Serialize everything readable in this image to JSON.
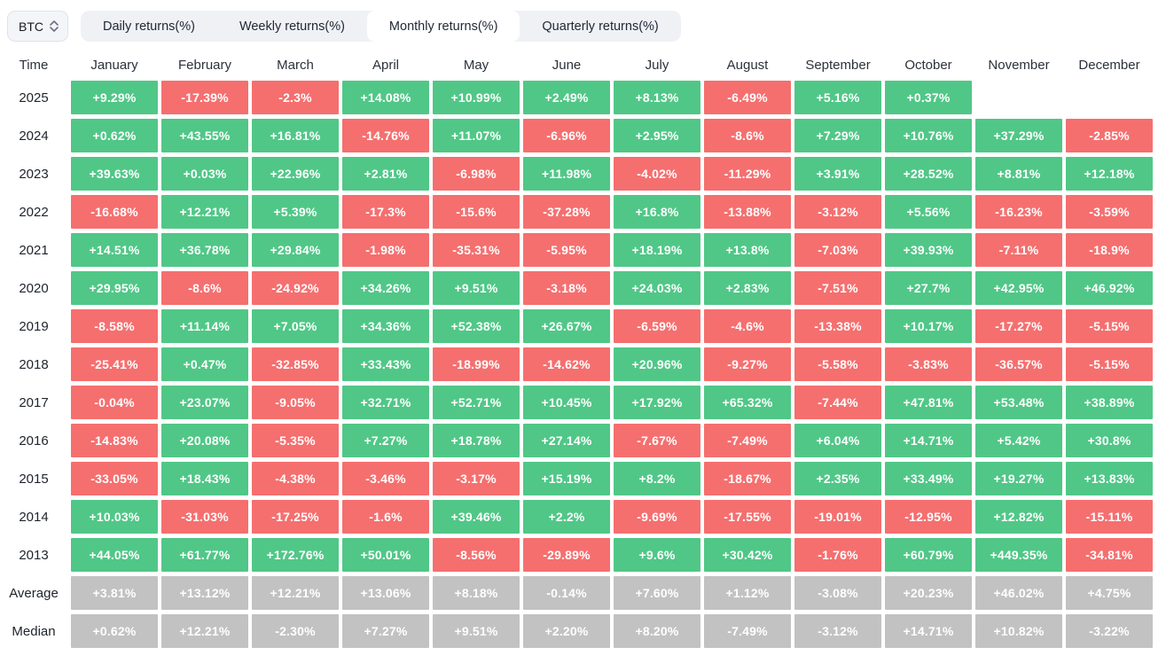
{
  "controls": {
    "coin": "BTC",
    "coin_selector_icon": "updown-chevron-icon",
    "tabs": [
      "Daily returns(%)",
      "Weekly returns(%)",
      "Monthly returns(%)",
      "Quarterly returns(%)"
    ],
    "active_tab": "Monthly returns(%)"
  },
  "colors": {
    "positive": "#50c787",
    "negative": "#f56f6f",
    "summary": "#c2c2c2",
    "tab_bar_bg": "#eff1f5",
    "active_tab_bg": "#ffffff",
    "cell_text": "#ffffff",
    "header_text": "#2b313b"
  },
  "chart_data": {
    "type": "heatmap",
    "title": "Monthly returns(%)",
    "columns": [
      "Time",
      "January",
      "February",
      "March",
      "April",
      "May",
      "June",
      "July",
      "August",
      "September",
      "October",
      "November",
      "December"
    ],
    "rows": [
      {
        "label": "2025",
        "summary": false,
        "values": [
          "+9.29%",
          "-17.39%",
          "-2.3%",
          "+14.08%",
          "+10.99%",
          "+2.49%",
          "+8.13%",
          "-6.49%",
          "+5.16%",
          "+0.37%",
          "",
          ""
        ]
      },
      {
        "label": "2024",
        "summary": false,
        "values": [
          "+0.62%",
          "+43.55%",
          "+16.81%",
          "-14.76%",
          "+11.07%",
          "-6.96%",
          "+2.95%",
          "-8.6%",
          "+7.29%",
          "+10.76%",
          "+37.29%",
          "-2.85%"
        ]
      },
      {
        "label": "2023",
        "summary": false,
        "values": [
          "+39.63%",
          "+0.03%",
          "+22.96%",
          "+2.81%",
          "-6.98%",
          "+11.98%",
          "-4.02%",
          "-11.29%",
          "+3.91%",
          "+28.52%",
          "+8.81%",
          "+12.18%"
        ]
      },
      {
        "label": "2022",
        "summary": false,
        "values": [
          "-16.68%",
          "+12.21%",
          "+5.39%",
          "-17.3%",
          "-15.6%",
          "-37.28%",
          "+16.8%",
          "-13.88%",
          "-3.12%",
          "+5.56%",
          "-16.23%",
          "-3.59%"
        ]
      },
      {
        "label": "2021",
        "summary": false,
        "values": [
          "+14.51%",
          "+36.78%",
          "+29.84%",
          "-1.98%",
          "-35.31%",
          "-5.95%",
          "+18.19%",
          "+13.8%",
          "-7.03%",
          "+39.93%",
          "-7.11%",
          "-18.9%"
        ]
      },
      {
        "label": "2020",
        "summary": false,
        "values": [
          "+29.95%",
          "-8.6%",
          "-24.92%",
          "+34.26%",
          "+9.51%",
          "-3.18%",
          "+24.03%",
          "+2.83%",
          "-7.51%",
          "+27.7%",
          "+42.95%",
          "+46.92%"
        ]
      },
      {
        "label": "2019",
        "summary": false,
        "values": [
          "-8.58%",
          "+11.14%",
          "+7.05%",
          "+34.36%",
          "+52.38%",
          "+26.67%",
          "-6.59%",
          "-4.6%",
          "-13.38%",
          "+10.17%",
          "-17.27%",
          "-5.15%"
        ]
      },
      {
        "label": "2018",
        "summary": false,
        "values": [
          "-25.41%",
          "+0.47%",
          "-32.85%",
          "+33.43%",
          "-18.99%",
          "-14.62%",
          "+20.96%",
          "-9.27%",
          "-5.58%",
          "-3.83%",
          "-36.57%",
          "-5.15%"
        ]
      },
      {
        "label": "2017",
        "summary": false,
        "values": [
          "-0.04%",
          "+23.07%",
          "-9.05%",
          "+32.71%",
          "+52.71%",
          "+10.45%",
          "+17.92%",
          "+65.32%",
          "-7.44%",
          "+47.81%",
          "+53.48%",
          "+38.89%"
        ]
      },
      {
        "label": "2016",
        "summary": false,
        "values": [
          "-14.83%",
          "+20.08%",
          "-5.35%",
          "+7.27%",
          "+18.78%",
          "+27.14%",
          "-7.67%",
          "-7.49%",
          "+6.04%",
          "+14.71%",
          "+5.42%",
          "+30.8%"
        ]
      },
      {
        "label": "2015",
        "summary": false,
        "values": [
          "-33.05%",
          "+18.43%",
          "-4.38%",
          "-3.46%",
          "-3.17%",
          "+15.19%",
          "+8.2%",
          "-18.67%",
          "+2.35%",
          "+33.49%",
          "+19.27%",
          "+13.83%"
        ]
      },
      {
        "label": "2014",
        "summary": false,
        "values": [
          "+10.03%",
          "-31.03%",
          "-17.25%",
          "-1.6%",
          "+39.46%",
          "+2.2%",
          "-9.69%",
          "-17.55%",
          "-19.01%",
          "-12.95%",
          "+12.82%",
          "-15.11%"
        ]
      },
      {
        "label": "2013",
        "summary": false,
        "values": [
          "+44.05%",
          "+61.77%",
          "+172.76%",
          "+50.01%",
          "-8.56%",
          "-29.89%",
          "+9.6%",
          "+30.42%",
          "-1.76%",
          "+60.79%",
          "+449.35%",
          "-34.81%"
        ]
      },
      {
        "label": "Average",
        "summary": true,
        "values": [
          "+3.81%",
          "+13.12%",
          "+12.21%",
          "+13.06%",
          "+8.18%",
          "-0.14%",
          "+7.60%",
          "+1.12%",
          "-3.08%",
          "+20.23%",
          "+46.02%",
          "+4.75%"
        ]
      },
      {
        "label": "Median",
        "summary": true,
        "values": [
          "+0.62%",
          "+12.21%",
          "-2.30%",
          "+7.27%",
          "+9.51%",
          "+2.20%",
          "+8.20%",
          "-7.49%",
          "-3.12%",
          "+14.71%",
          "+10.82%",
          "-3.22%"
        ]
      }
    ]
  }
}
